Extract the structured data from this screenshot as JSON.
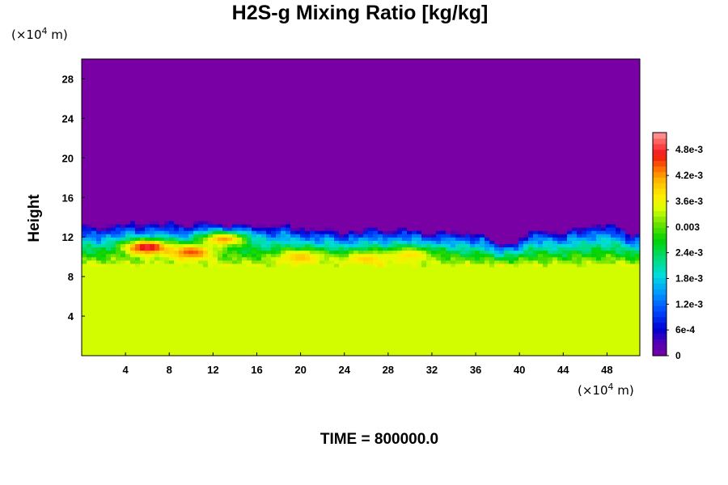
{
  "chart_data": {
    "type": "heatmap",
    "title": "H2S-g Mixing Ratio [kg/kg]",
    "ylabel": "Height",
    "xlabel": "",
    "x_unit_prefix": "(×10",
    "x_unit_exp": "4",
    "x_unit_suffix": " m)",
    "y_unit_prefix": "(×10",
    "y_unit_exp": "4",
    "y_unit_suffix": " m)",
    "xlim": [
      0,
      51
    ],
    "ylim": [
      0,
      30
    ],
    "x_ticks": [
      "4",
      "8",
      "12",
      "16",
      "20",
      "24",
      "28",
      "32",
      "36",
      "40",
      "44",
      "48"
    ],
    "y_ticks": [
      "4",
      "8",
      "12",
      "16",
      "20",
      "24",
      "28"
    ],
    "colorbar": {
      "min": 0,
      "max": 0.0052,
      "tick_labels": [
        "0",
        "6e-4",
        "1.2e-3",
        "1.8e-3",
        "2.4e-3",
        "0.003",
        "3.6e-3",
        "4.2e-3",
        "4.8e-3"
      ],
      "tick_values": [
        0,
        0.0006,
        0.0012,
        0.0018,
        0.0024,
        0.003,
        0.0036,
        0.0042,
        0.0048
      ]
    },
    "field_description": {
      "lower_layer_height_max": 10,
      "lower_layer_value": 0.0034,
      "upper_layer_value": 0,
      "interface_height_profile": {
        "x": [
          0,
          3,
          6,
          9,
          12,
          15,
          18,
          21,
          24,
          27,
          30,
          33,
          36,
          38,
          40,
          42,
          44,
          46,
          48,
          51
        ],
        "height": [
          13.0,
          13.3,
          13.6,
          13.4,
          13.5,
          13.2,
          13.3,
          12.9,
          12.6,
          12.9,
          12.8,
          12.5,
          12.6,
          11.3,
          11.8,
          13.0,
          12.4,
          13.3,
          13.4,
          12.2
        ]
      },
      "hotspots": [
        {
          "x": 6,
          "y": 11.0,
          "value": 0.0049
        },
        {
          "x": 10,
          "y": 10.5,
          "value": 0.0045
        },
        {
          "x": 13,
          "y": 11.8,
          "value": 0.0042
        },
        {
          "x": 20,
          "y": 10.0,
          "value": 0.004
        },
        {
          "x": 26,
          "y": 9.8,
          "value": 0.0039
        },
        {
          "x": 30,
          "y": 10.2,
          "value": 0.0038
        }
      ]
    }
  },
  "footer": {
    "time_label": "TIME = 800000.0"
  }
}
